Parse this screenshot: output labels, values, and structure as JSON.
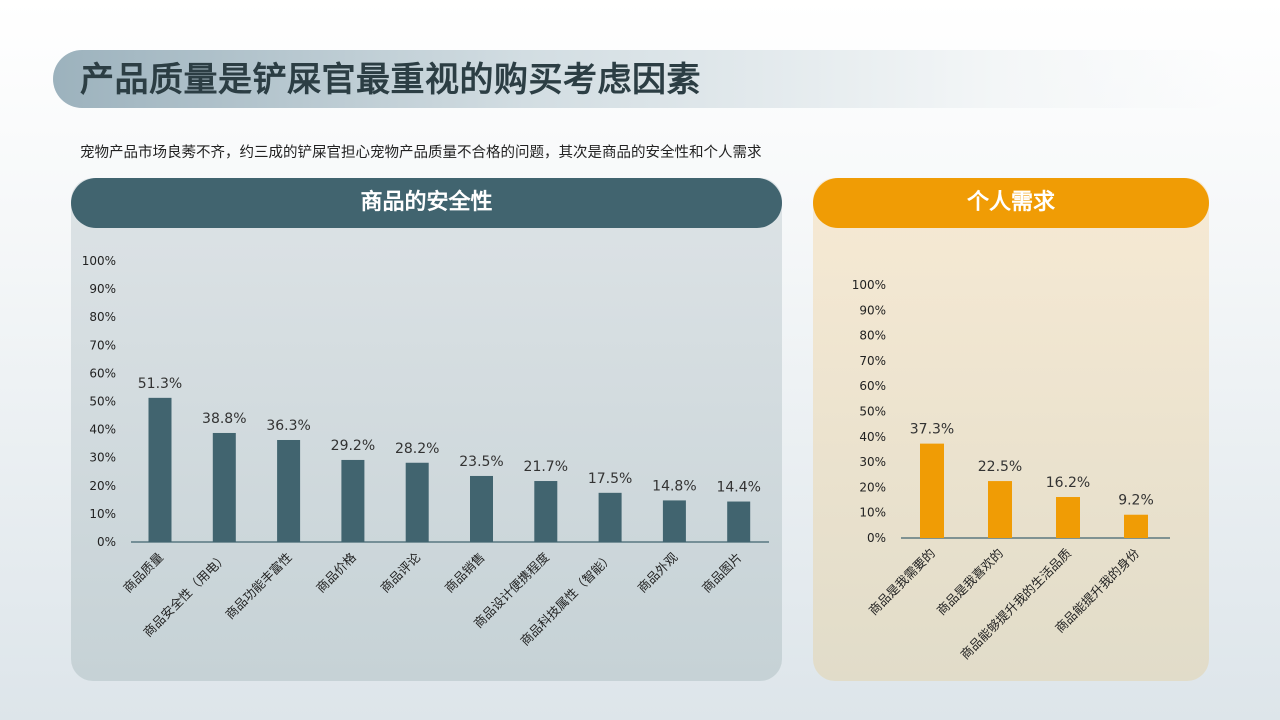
{
  "title": "产品质量是铲屎官最重视的购买考虑因素",
  "subtitle": "宠物产品市场良莠不齐，约三成的铲屎官担心宠物产品质量不合格的问题，其次是商品的安全性和个人需求",
  "colors": {
    "left_bar": "#41646f",
    "right_bar": "#f09c05",
    "axis": "#41646f"
  },
  "chart_data": [
    {
      "type": "bar",
      "title": "商品的安全性",
      "categories": [
        "商品质量",
        "商品安全性（用电）",
        "商品功能丰富性",
        "商品价格",
        "商品评论",
        "商品销售",
        "商品设计便携程度",
        "商品科技属性（智能）",
        "商品外观",
        "商品图片"
      ],
      "values": [
        51.3,
        38.8,
        36.3,
        29.2,
        28.2,
        23.5,
        21.7,
        17.5,
        14.8,
        14.4
      ],
      "data_labels": [
        "51.3%",
        "38.8%",
        "36.3%",
        "29.2%",
        "28.2%",
        "23.5%",
        "21.7%",
        "17.5%",
        "14.8%",
        "14.4%"
      ],
      "yticks": [
        "0%",
        "10%",
        "20%",
        "30%",
        "40%",
        "50%",
        "60%",
        "70%",
        "80%",
        "90%",
        "100%"
      ],
      "ylim": [
        0,
        100
      ],
      "grid": false,
      "legend": "none"
    },
    {
      "type": "bar",
      "title": "个人需求",
      "categories": [
        "商品是我需要的",
        "商品是我喜欢的",
        "商品能够提升我的生活品质",
        "商品能提升我的身份"
      ],
      "values": [
        37.3,
        22.5,
        16.2,
        9.2
      ],
      "data_labels": [
        "37.3%",
        "22.5%",
        "16.2%",
        "9.2%"
      ],
      "yticks": [
        "0%",
        "10%",
        "20%",
        "30%",
        "40%",
        "50%",
        "60%",
        "70%",
        "80%",
        "90%",
        "100%"
      ],
      "ylim": [
        0,
        100
      ],
      "grid": false,
      "legend": "none"
    }
  ]
}
